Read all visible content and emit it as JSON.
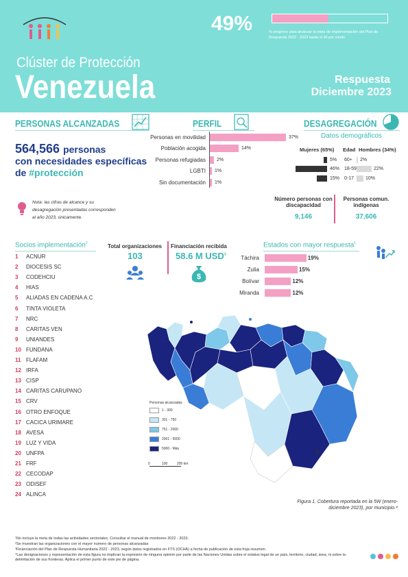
{
  "header": {
    "progress_percent": "49%",
    "progress_fraction": 0.49,
    "progress_text": "% progreso para alcanzar la meta de implementación del Plan de Respuesta 2022 - 2023 hasta el 30 por ciento",
    "title_small": "Clúster de Protección",
    "title_big": "Venezuela",
    "response_line1": "Respuesta",
    "response_line2": "Diciembre 2023"
  },
  "sections": {
    "reach_title": "PERSONAS ALCANZADAS",
    "profile_title": "PERFIL",
    "disaggregation_title": "DESAGREGACIÓN"
  },
  "reach": {
    "number": "564,566",
    "word": "personas",
    "line2": "con necesidades específicas",
    "line3_prefix": "de ",
    "line3_hash": "#protección",
    "note": "Nota: las cifras de alcance y su desagregación presentadas corresponden al año 2023, únicamente."
  },
  "profile": [
    {
      "label": "Personas en movilidad",
      "value": "37%",
      "pct": 37
    },
    {
      "label": "Población acogida",
      "value": "14%",
      "pct": 14
    },
    {
      "label": "Personas refugiadas",
      "value": "2%",
      "pct": 2
    },
    {
      "label": "LGBTI",
      "value": "1%",
      "pct": 1
    },
    {
      "label": "Sin documentación",
      "value": "1%",
      "pct": 1
    }
  ],
  "demographics": {
    "subtitle": "Datos demográficos",
    "women_header": "Mujeres (65%)",
    "age_header": "Edad",
    "men_header": "Hombres (34%)",
    "rows": [
      {
        "age": "60+",
        "women": "5%",
        "women_pct": 5,
        "men": "2%",
        "men_pct": 2
      },
      {
        "age": "18-59",
        "women": "46%",
        "women_pct": 46,
        "men": "22%",
        "men_pct": 22
      },
      {
        "age": "0-17",
        "women": "15%",
        "women_pct": 15,
        "men": "10%",
        "men_pct": 10
      }
    ],
    "disability_label": "Número personas con discapacidad",
    "disability_value": "9,146",
    "indigenous_label": "Personas comun. indígenas",
    "indigenous_value": "37,606"
  },
  "partners": {
    "title": "Socios implementación",
    "title_sup": "2",
    "list": [
      {
        "n": "1",
        "name": "ACNUR"
      },
      {
        "n": "2",
        "name": "DIOCESIS SC"
      },
      {
        "n": "3",
        "name": "CODEHCIU"
      },
      {
        "n": "4",
        "name": "HIAS"
      },
      {
        "n": "5",
        "name": "ALIADAS EN CADENA A.C"
      },
      {
        "n": "6",
        "name": "TINTA VIOLETA"
      },
      {
        "n": "7",
        "name": "NRC"
      },
      {
        "n": "8",
        "name": "CARITAS VEN"
      },
      {
        "n": "9",
        "name": "UNIANDES"
      },
      {
        "n": "10",
        "name": "FUNDANA"
      },
      {
        "n": "11",
        "name": "FLAFAM"
      },
      {
        "n": "12",
        "name": "IRFA"
      },
      {
        "n": "13",
        "name": "CISP"
      },
      {
        "n": "14",
        "name": "CARITAS CARUPANO"
      },
      {
        "n": "15",
        "name": "CRV"
      },
      {
        "n": "16",
        "name": "OTRO ENFOQUE"
      },
      {
        "n": "17",
        "name": "CACICA URIMARE"
      },
      {
        "n": "18",
        "name": "AVESA"
      },
      {
        "n": "19",
        "name": "LUZ Y VIDA"
      },
      {
        "n": "20",
        "name": "UNFPA"
      },
      {
        "n": "21",
        "name": "FRF"
      },
      {
        "n": "22",
        "name": "CECODAP"
      },
      {
        "n": "23",
        "name": "ODISEF"
      },
      {
        "n": "24",
        "name": "ALINCA"
      }
    ]
  },
  "totals": {
    "orgs_label": "Total organizaciones",
    "orgs_value": "103",
    "funding_label": "Financiación recibida",
    "funding_value": "58.6 M USD",
    "funding_sup": "3"
  },
  "states": {
    "title": "Estados con mayor respuesta",
    "title_sup": "1",
    "rows": [
      {
        "name": "Táchira",
        "value": "19%",
        "pct": 19
      },
      {
        "name": "Zulia",
        "value": "15%",
        "pct": 15
      },
      {
        "name": "Bolívar",
        "value": "12%",
        "pct": 12
      },
      {
        "name": "Miranda",
        "value": "12%",
        "pct": 12
      }
    ]
  },
  "map": {
    "legend_title": "Personas alcanzadas",
    "legend_items": [
      {
        "label": "1 - 300",
        "color": "#ffffff"
      },
      {
        "label": "301 - 750",
        "color": "#c5e6f5"
      },
      {
        "label": "751 - 2000",
        "color": "#7ec8ea"
      },
      {
        "label": "2001 - 5000",
        "color": "#3a7dd6"
      },
      {
        "label": "5000 - Más",
        "color": "#1a237e"
      }
    ],
    "scale_labels": [
      "0",
      "100",
      "200 km"
    ],
    "caption": "Figura 1. Cobertura reportada en la 5W (enero- diciembre 2023), por municipio.⁴"
  },
  "footnotes": [
    "¹No incluye la meta de todas las actividades sectoriales. Consultar el manual de monitoreo 2022 - 2023.",
    "²Se muestran las organizaciones con el mayor numero de personas alcanzadas",
    "³Financiación del Plan de Respuesta Humanitaria 2022 - 2023, según datos registrados en FTS (OCHA) a fecha de publicación de esta hoja resumen.",
    "⁴Las designaciones y representación de esta figura no implican la expresión de ninguna opinión por parte de las Naciones Unidas sobre el estatus legal de un país, territorio, ciudad, área, ni sobre la delimitación de sus fronteras. Aplica el primer punto de este pie de página."
  ],
  "colors": {
    "header_bg": "#7fded8",
    "accent_teal": "#3ab7b3",
    "accent_pink": "#f4a0c4",
    "navy": "#1f3d8a",
    "dots": [
      "#5bc0de",
      "#e05b8e",
      "#f2c14e",
      "#f07c3a"
    ]
  }
}
